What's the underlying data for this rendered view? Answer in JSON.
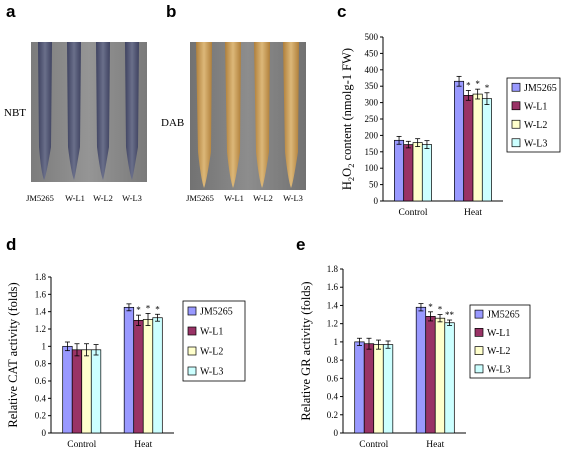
{
  "panels": {
    "a": {
      "letter": "a",
      "stain_label": "NBT",
      "lanes": [
        "JM5265",
        "W-L1",
        "W-L2",
        "W-L3"
      ]
    },
    "b": {
      "letter": "b",
      "stain_label": "DAB",
      "lanes": [
        "JM5265",
        "W-L1",
        "W-L2",
        "W-L3"
      ]
    },
    "c": {
      "letter": "c"
    },
    "d": {
      "letter": "d"
    },
    "e": {
      "letter": "e"
    }
  },
  "colors": {
    "JM5265": "#9999ff",
    "W-L1": "#993366",
    "W-L2": "#ffffcc",
    "W-L3": "#ccffff",
    "nbt_background": "#8a8a8a",
    "nbt_root": "#4f5470",
    "dab_background": "#838383",
    "dab_root": "#c9a05a"
  },
  "chart_data": [
    {
      "panel": "c",
      "type": "bar",
      "ylabel": "H2O2 content (nmolg-1 FW)",
      "ylabel_parts": [
        "H",
        "2",
        "O",
        "2",
        " content (nmolg-1 FW)"
      ],
      "ylim": [
        0,
        500
      ],
      "yticks": [
        "0",
        "50",
        "100",
        "150",
        "200",
        "250",
        "300",
        "350",
        "400",
        "450",
        "500"
      ],
      "categories": [
        "Control",
        "Heat"
      ],
      "series": [
        {
          "name": "JM5265",
          "values": [
            185,
            365
          ],
          "errors": [
            12,
            15
          ],
          "sig": [
            "",
            ""
          ]
        },
        {
          "name": "W-L1",
          "values": [
            172,
            322
          ],
          "errors": [
            10,
            15
          ],
          "sig": [
            "",
            "*"
          ]
        },
        {
          "name": "W-L2",
          "values": [
            178,
            326
          ],
          "errors": [
            12,
            15
          ],
          "sig": [
            "",
            "*"
          ]
        },
        {
          "name": "W-L3",
          "values": [
            172,
            312
          ],
          "errors": [
            12,
            18
          ],
          "sig": [
            "",
            "*"
          ]
        }
      ],
      "legend_position": "right-boxed",
      "grid": false
    },
    {
      "panel": "d",
      "type": "bar",
      "ylabel": "Relative CAT activity (folds)",
      "ylim": [
        0,
        1.8
      ],
      "yticks": [
        "0",
        "0.2",
        "0.4",
        "0.6",
        "0.8",
        "1",
        "1.2",
        "1.4",
        "1.6",
        "1.8"
      ],
      "categories": [
        "Control",
        "Heat"
      ],
      "series": [
        {
          "name": "JM5265",
          "values": [
            1.0,
            1.45
          ],
          "errors": [
            0.05,
            0.04
          ],
          "sig": [
            "",
            ""
          ]
        },
        {
          "name": "W-L1",
          "values": [
            0.96,
            1.3
          ],
          "errors": [
            0.07,
            0.06
          ],
          "sig": [
            "",
            "*"
          ]
        },
        {
          "name": "W-L2",
          "values": [
            0.96,
            1.31
          ],
          "errors": [
            0.07,
            0.07
          ],
          "sig": [
            "",
            "*"
          ]
        },
        {
          "name": "W-L3",
          "values": [
            0.96,
            1.33
          ],
          "errors": [
            0.06,
            0.04
          ],
          "sig": [
            "",
            "*"
          ]
        }
      ],
      "legend_position": "right-boxed",
      "grid": false
    },
    {
      "panel": "e",
      "type": "bar",
      "ylabel": "Relative GR activity (folds)",
      "ylim": [
        0,
        1.8
      ],
      "yticks": [
        "0",
        "0.2",
        "0.4",
        "0.6",
        "0.8",
        "1",
        "1.2",
        "1.4",
        "1.6",
        "1.8"
      ],
      "categories": [
        "Control",
        "Heat"
      ],
      "series": [
        {
          "name": "JM5265",
          "values": [
            1.0,
            1.38
          ],
          "errors": [
            0.04,
            0.04
          ],
          "sig": [
            "",
            ""
          ]
        },
        {
          "name": "W-L1",
          "values": [
            0.98,
            1.28
          ],
          "errors": [
            0.06,
            0.05
          ],
          "sig": [
            "",
            "*"
          ]
        },
        {
          "name": "W-L2",
          "values": [
            0.97,
            1.26
          ],
          "errors": [
            0.05,
            0.04
          ],
          "sig": [
            "",
            "*"
          ]
        },
        {
          "name": "W-L3",
          "values": [
            0.97,
            1.21
          ],
          "errors": [
            0.04,
            0.03
          ],
          "sig": [
            "",
            "**"
          ]
        }
      ],
      "legend_position": "right-boxed",
      "grid": false
    }
  ]
}
